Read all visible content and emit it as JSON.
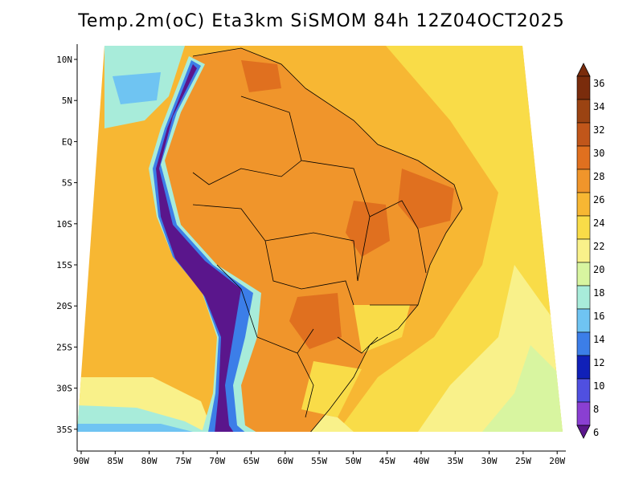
{
  "title": "Temp.2m(oC) Eta3km SiSMOM 84h 12Z04OCT2025",
  "latitude_labels": [
    "10N",
    "5N",
    "EQ",
    "5S",
    "10S",
    "15S",
    "20S",
    "25S",
    "30S",
    "35S"
  ],
  "longitude_labels": [
    "90W",
    "85W",
    "80W",
    "75W",
    "70W",
    "65W",
    "60W",
    "55W",
    "50W",
    "45W",
    "40W",
    "35W",
    "30W",
    "25W",
    "20W"
  ],
  "colorbar": {
    "labels": [
      "36",
      "34",
      "32",
      "30",
      "28",
      "26",
      "24",
      "22",
      "20",
      "18",
      "16",
      "14",
      "12",
      "10",
      "8",
      "6"
    ],
    "colors": [
      "#7a2c0c",
      "#9b4312",
      "#c1561a",
      "#e0701f",
      "#f0952b",
      "#f7b733",
      "#f9dc48",
      "#f9f18a",
      "#d8f5a0",
      "#a8ecda",
      "#6fc4f2",
      "#3c7ee8",
      "#1020b8",
      "#5050e0",
      "#8a3fd2",
      "#5a168c"
    ]
  },
  "map_colors": {
    "ocean_warm": "#f7b733",
    "ocean_mid": "#f9dc48",
    "ocean_cool": "#f9f18a",
    "ocean_cold": "#d8f5a0",
    "land_hot": "#f0952b",
    "land_very_hot": "#e0701f",
    "andes_cold": "#5a168c",
    "andes_cool": "#3c7ee8",
    "andes_mild": "#a8ecda",
    "border": "#000000"
  }
}
